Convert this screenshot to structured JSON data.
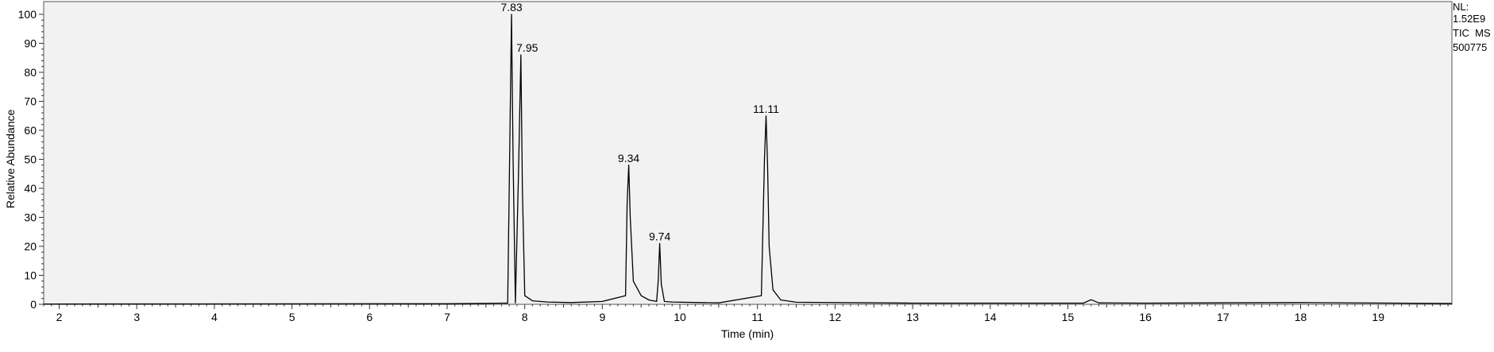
{
  "chart_data": {
    "type": "line",
    "xlabel": "Time (min)",
    "ylabel": "Relative Abundance",
    "xlim": [
      1.8,
      19.95
    ],
    "ylim": [
      0,
      100
    ],
    "x_ticks": [
      "2",
      "3",
      "4",
      "5",
      "6",
      "7",
      "8",
      "9",
      "10",
      "11",
      "12",
      "13",
      "14",
      "15",
      "16",
      "17",
      "18",
      "19"
    ],
    "y_ticks": [
      "0",
      "10",
      "20",
      "30",
      "40",
      "50",
      "60",
      "70",
      "80",
      "90",
      "100"
    ],
    "info": [
      "NL:",
      "1.52E9",
      "TIC  MS",
      "500775"
    ],
    "grid": false,
    "peaks": [
      {
        "rt": 7.83,
        "label": "7.83",
        "abundance": 100
      },
      {
        "rt": 7.95,
        "label": "7.95",
        "abundance": 86
      },
      {
        "rt": 9.34,
        "label": "9.34",
        "abundance": 48
      },
      {
        "rt": 9.74,
        "label": "9.74",
        "abundance": 21
      },
      {
        "rt": 11.11,
        "label": "11.11",
        "abundance": 65
      }
    ],
    "series": [
      {
        "x": [
          1.8,
          7.0,
          7.78,
          7.81,
          7.83,
          7.85,
          7.88,
          7.92,
          7.95,
          7.97,
          8.0,
          8.1,
          8.3,
          8.6,
          9.0,
          9.3,
          9.32,
          9.34,
          9.36,
          9.4,
          9.5,
          9.6,
          9.7,
          9.72,
          9.74,
          9.76,
          9.8,
          9.9,
          10.5,
          11.05,
          11.09,
          11.11,
          11.13,
          11.15,
          11.2,
          11.3,
          11.5,
          13.0,
          15.2,
          15.3,
          15.4,
          16.0,
          18.0,
          19.95
        ],
        "y": [
          0.1,
          0.2,
          0.4,
          60,
          100,
          50,
          0.5,
          45,
          86,
          40,
          3,
          1.2,
          0.8,
          0.6,
          1.0,
          3,
          35,
          48,
          30,
          8,
          3,
          1.5,
          1,
          8,
          21,
          7,
          1,
          0.8,
          0.5,
          3,
          50,
          65,
          48,
          20,
          5,
          1.5,
          0.7,
          0.4,
          0.4,
          1.6,
          0.5,
          0.4,
          0.6,
          0.3
        ]
      }
    ]
  }
}
